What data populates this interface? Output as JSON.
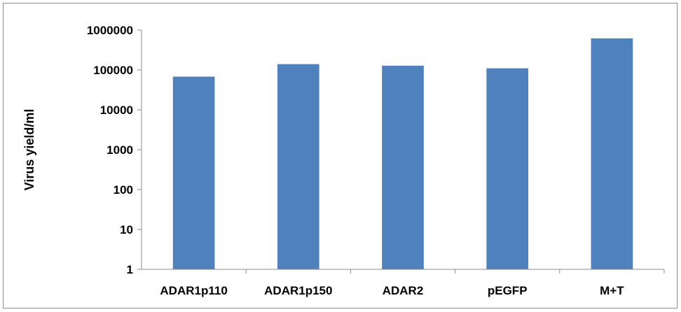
{
  "chart_data": {
    "type": "bar",
    "title": "",
    "xlabel": "",
    "ylabel": "Virus yield/ml",
    "yscale": "log",
    "ylim": [
      1,
      1000000
    ],
    "yticks": [
      "1",
      "10",
      "100",
      "1000",
      "10000",
      "100000",
      "1000000"
    ],
    "categories": [
      "ADAR1p110",
      "ADAR1p150",
      "ADAR2",
      "pEGFP",
      "M+T"
    ],
    "values": [
      68000,
      140000,
      128000,
      110000,
      620000
    ],
    "grid": false,
    "legend": "none",
    "bar_color": "#4f81bd"
  }
}
